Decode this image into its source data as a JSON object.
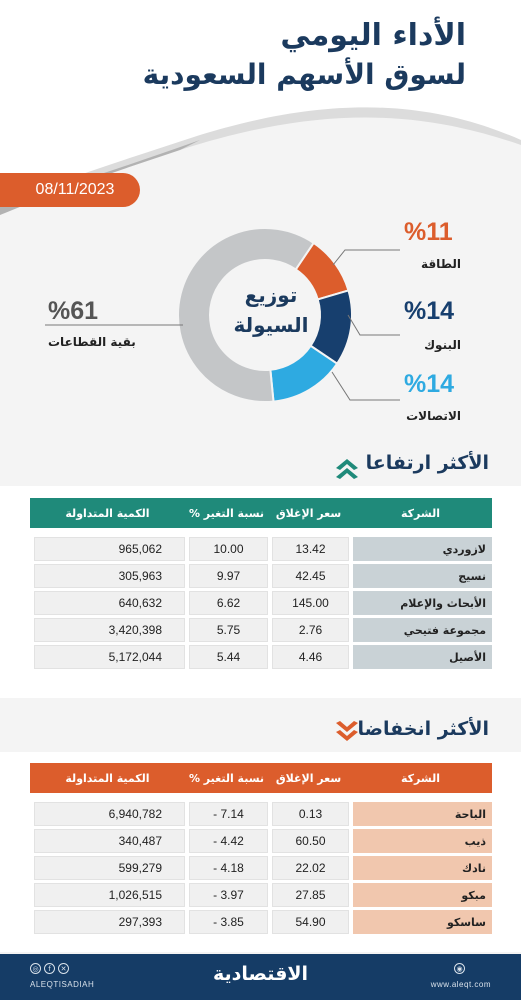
{
  "header": {
    "title_line1": "الأداء اليومي",
    "title_line2": "لسوق الأسهم السعودية",
    "date": "08/11/2023"
  },
  "chart_data": [
    {
      "type": "pie",
      "title": "توزيع السيولة",
      "title_line1": "توزيع",
      "title_line2": "السيولة",
      "slices": [
        {
          "label": "الطاقة",
          "value": 11,
          "display": "%11",
          "color": "#dc5d2c"
        },
        {
          "label": "البنوك",
          "value": 14,
          "display": "%14",
          "color": "#173f6e"
        },
        {
          "label": "الاتصالات",
          "value": 14,
          "display": "%14",
          "color": "#2eaae1"
        },
        {
          "label": "بقية القطاعات",
          "value": 61,
          "display": "%61",
          "color": "#c4c6c8"
        }
      ]
    },
    {
      "type": "table",
      "title": "الأكثر ارتفاعا",
      "columns": [
        "الشركة",
        "سعر الإغلاق",
        "نسبة التغير %",
        "الكمية المتداولة"
      ],
      "rows": [
        [
          "لازوردي",
          "13.42",
          "10.00",
          "965,062"
        ],
        [
          "نسيج",
          "42.45",
          "9.97",
          "305,963"
        ],
        [
          "الأبحاث والإعلام",
          "145.00",
          "6.62",
          "640,632"
        ],
        [
          "مجموعة فتيحي",
          "2.76",
          "5.75",
          "3,420,398"
        ],
        [
          "الأصيل",
          "4.46",
          "5.44",
          "5,172,044"
        ]
      ]
    },
    {
      "type": "table",
      "title": "الأكثر انخفاضا",
      "columns": [
        "الشركة",
        "سعر الإغلاق",
        "نسبة التغير %",
        "الكمية المتداولة"
      ],
      "rows": [
        [
          "الباحة",
          "0.13",
          "7.14 -",
          "6,940,782"
        ],
        [
          "ذيب",
          "60.50",
          "4.42 -",
          "340,487"
        ],
        [
          "نادك",
          "22.02",
          "4.18 -",
          "599,279"
        ],
        [
          "مبكو",
          "27.85",
          "3.97 -",
          "1,026,515"
        ],
        [
          "ساسكو",
          "54.90",
          "3.85 -",
          "297,393"
        ]
      ]
    }
  ],
  "sections": {
    "gainers": {
      "title": "الأكثر ارتفاعا",
      "header_color": "#1f8a7a",
      "name_color": "#c9d2d6"
    },
    "losers": {
      "title": "الأكثر انخفاضا",
      "header_color": "#dc5d2c",
      "name_color": "#f1c7ae"
    }
  },
  "footer": {
    "logo": "الاقتصادية",
    "handle": "ALEQTISADIAH",
    "site": "www.aleqt.com"
  }
}
